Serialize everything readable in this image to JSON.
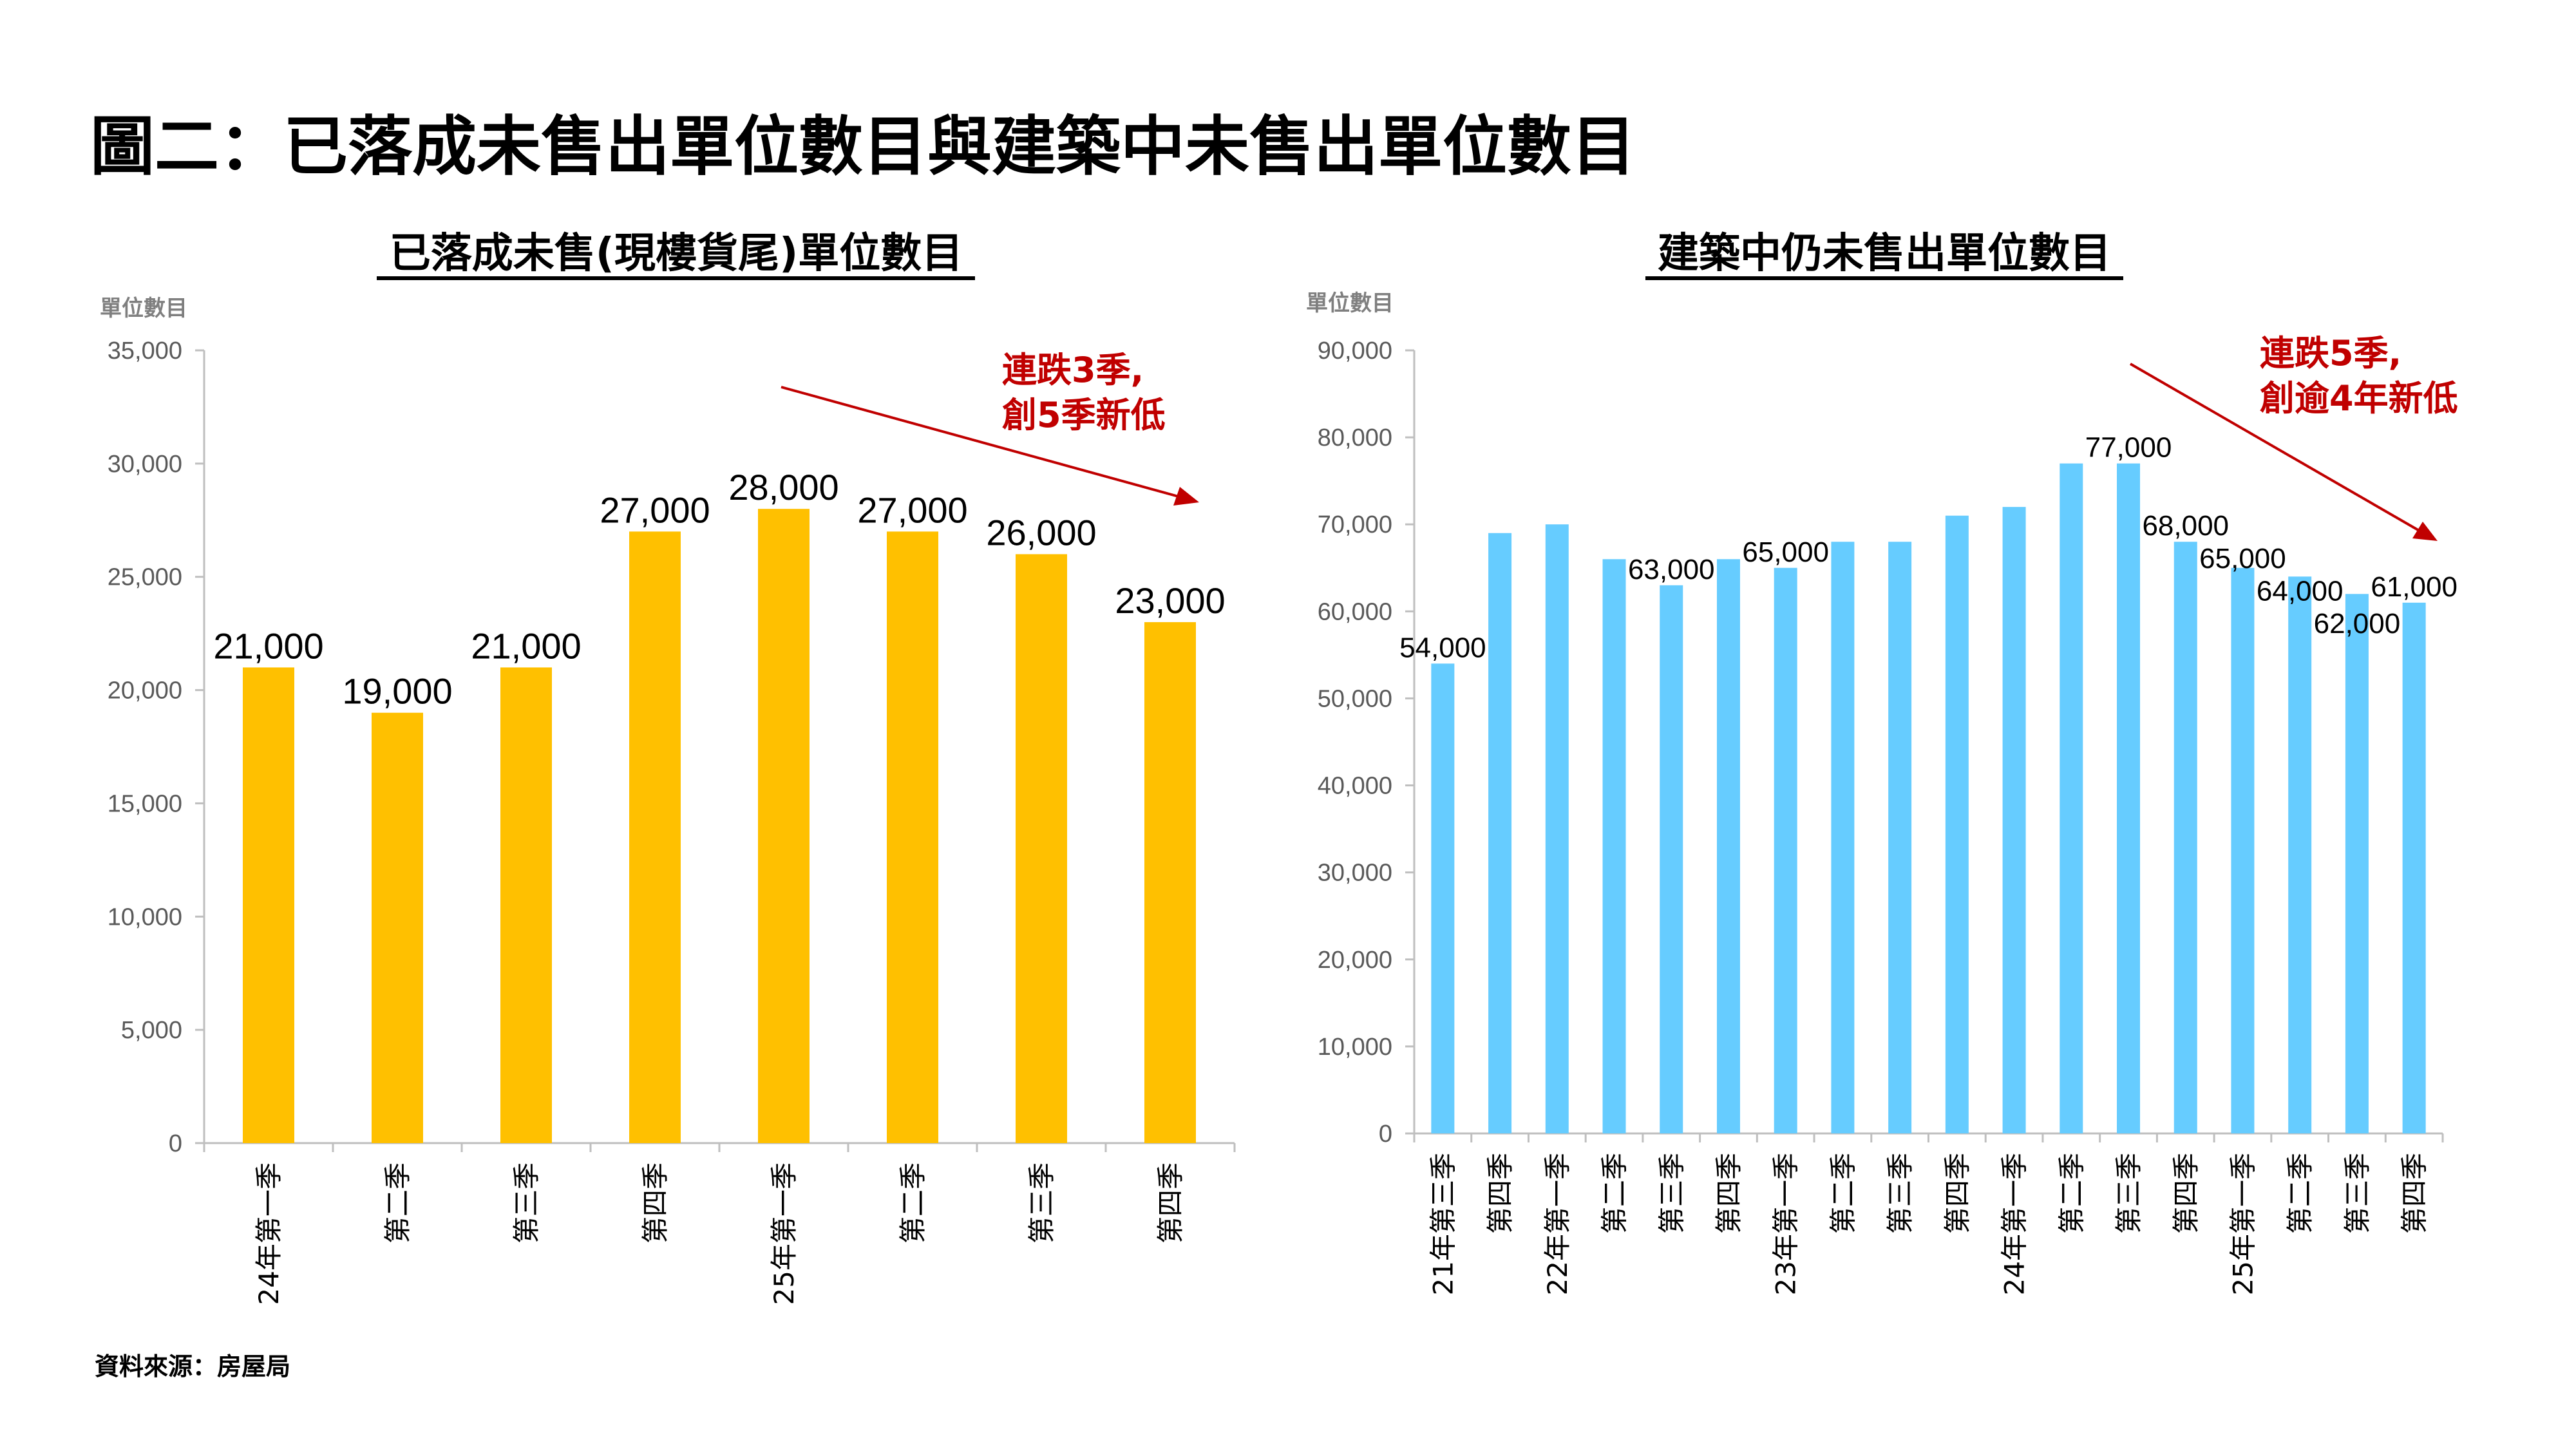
{
  "title": "圖二：已落成未售出單位數目與建築中未售出單位數目",
  "source": "資料來源：房屋局",
  "chart_data": [
    {
      "type": "bar",
      "title": "已落成未售(現樓貨尾)單位數目",
      "ylabel": "單位數目",
      "ylim": [
        0,
        35000
      ],
      "yticks": [
        "0",
        "5,000",
        "10,000",
        "15,000",
        "20,000",
        "25,000",
        "30,000",
        "35,000"
      ],
      "ytick_values": [
        0,
        5000,
        10000,
        15000,
        20000,
        25000,
        30000,
        35000
      ],
      "categories": [
        "24年第一季",
        "第二季",
        "第三季",
        "第四季",
        "25年第一季",
        "第二季",
        "第三季",
        "第四季"
      ],
      "values": [
        21000,
        19000,
        21000,
        27000,
        28000,
        27000,
        26000,
        23000
      ],
      "data_labels": [
        "21,000",
        "19,000",
        "21,000",
        "27,000",
        "28,000",
        "27,000",
        "26,000",
        "23,000"
      ],
      "color": "#ffc000",
      "annotation": [
        "連跌3季,",
        "創5季新低"
      ],
      "annotation_color": "#c00000",
      "grid": false
    },
    {
      "type": "bar",
      "title": "建築中仍未售出單位數目",
      "ylabel": "單位數目",
      "ylim": [
        0,
        90000
      ],
      "yticks": [
        "0",
        "10,000",
        "20,000",
        "30,000",
        "40,000",
        "50,000",
        "60,000",
        "70,000",
        "80,000",
        "90,000"
      ],
      "ytick_values": [
        0,
        10000,
        20000,
        30000,
        40000,
        50000,
        60000,
        70000,
        80000,
        90000
      ],
      "categories": [
        "21年第三季",
        "第四季",
        "22年第一季",
        "第二季",
        "第三季",
        "第四季",
        "23年第一季",
        "第二季",
        "第三季",
        "第四季",
        "24年第一季",
        "第二季",
        "第三季",
        "第四季",
        "25年第一季",
        "第二季",
        "第三季",
        "第四季"
      ],
      "values": [
        54000,
        69000,
        70000,
        66000,
        63000,
        66000,
        65000,
        68000,
        68000,
        71000,
        72000,
        77000,
        77000,
        68000,
        65000,
        64000,
        62000,
        61000
      ],
      "data_labels": [
        "54,000",
        null,
        null,
        null,
        "63,000",
        null,
        "65,000",
        null,
        null,
        null,
        null,
        null,
        "77,000",
        "68,000",
        "65,000",
        "64,000",
        "62,000",
        "61,000"
      ],
      "color": "#66ccff",
      "annotation": [
        "連跌5季,",
        "創逾4年新低"
      ],
      "annotation_color": "#c00000",
      "grid": false
    }
  ]
}
